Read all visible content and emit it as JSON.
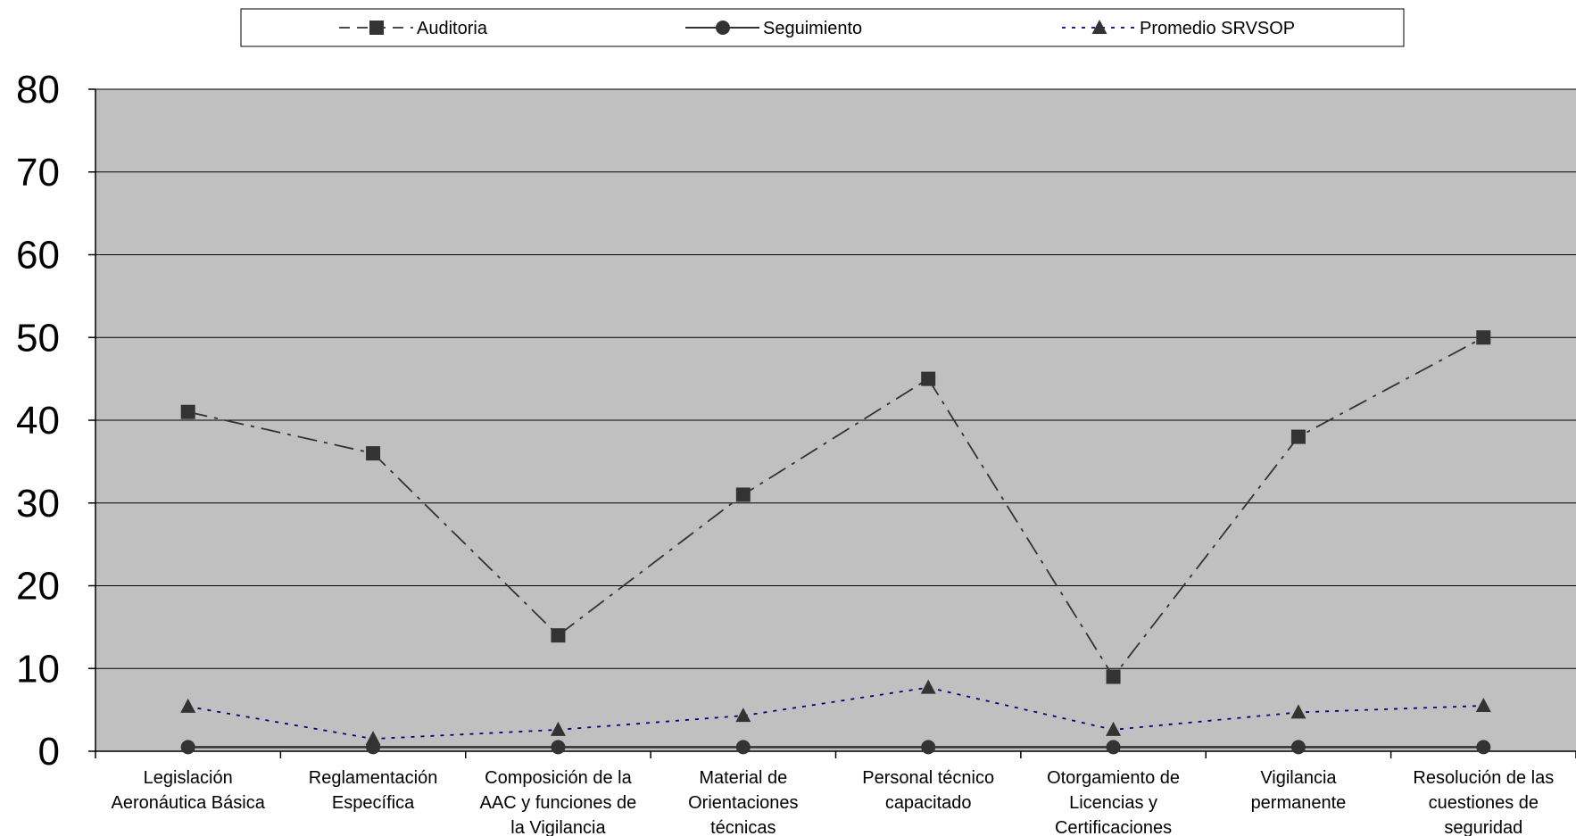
{
  "chart_data": {
    "type": "line",
    "title": "",
    "xlabel": "",
    "ylabel": "",
    "ylim": [
      0,
      80
    ],
    "yticks": [
      0,
      10,
      20,
      30,
      40,
      50,
      60,
      70,
      80
    ],
    "grid": true,
    "legend_position": "top",
    "plot_background": "#c0c0c0",
    "categories": [
      [
        "Legislación",
        "Aeronáutica Básica"
      ],
      [
        "Reglamentación",
        "Específica"
      ],
      [
        "Composición de la",
        "AAC y funciones de",
        "la Vigilancia"
      ],
      [
        "Material de",
        "Orientaciones",
        "técnicas"
      ],
      [
        "Personal técnico",
        "capacitado"
      ],
      [
        "Otorgamiento de",
        "Licencias y",
        "Certificaciones"
      ],
      [
        "Vigilancia",
        "permanente"
      ],
      [
        "Resolución de las",
        "cuestiones de",
        "seguridad"
      ]
    ],
    "series": [
      {
        "name": "Auditoria",
        "values": [
          41,
          36,
          14,
          31,
          45,
          9,
          38,
          50
        ],
        "color": "#333333",
        "marker": "square",
        "line": "dashdot"
      },
      {
        "name": "Seguimiento",
        "values": [
          0.5,
          0.5,
          0.5,
          0.5,
          0.5,
          0.5,
          0.5,
          0.5
        ],
        "color": "#333333",
        "marker": "circle",
        "line": "solid"
      },
      {
        "name": "Promedio SRVSOP",
        "values": [
          5.4,
          1.5,
          2.6,
          4.3,
          7.7,
          2.6,
          4.7,
          5.5
        ],
        "color": "#000080",
        "marker": "triangle",
        "line": "dotted"
      }
    ]
  }
}
